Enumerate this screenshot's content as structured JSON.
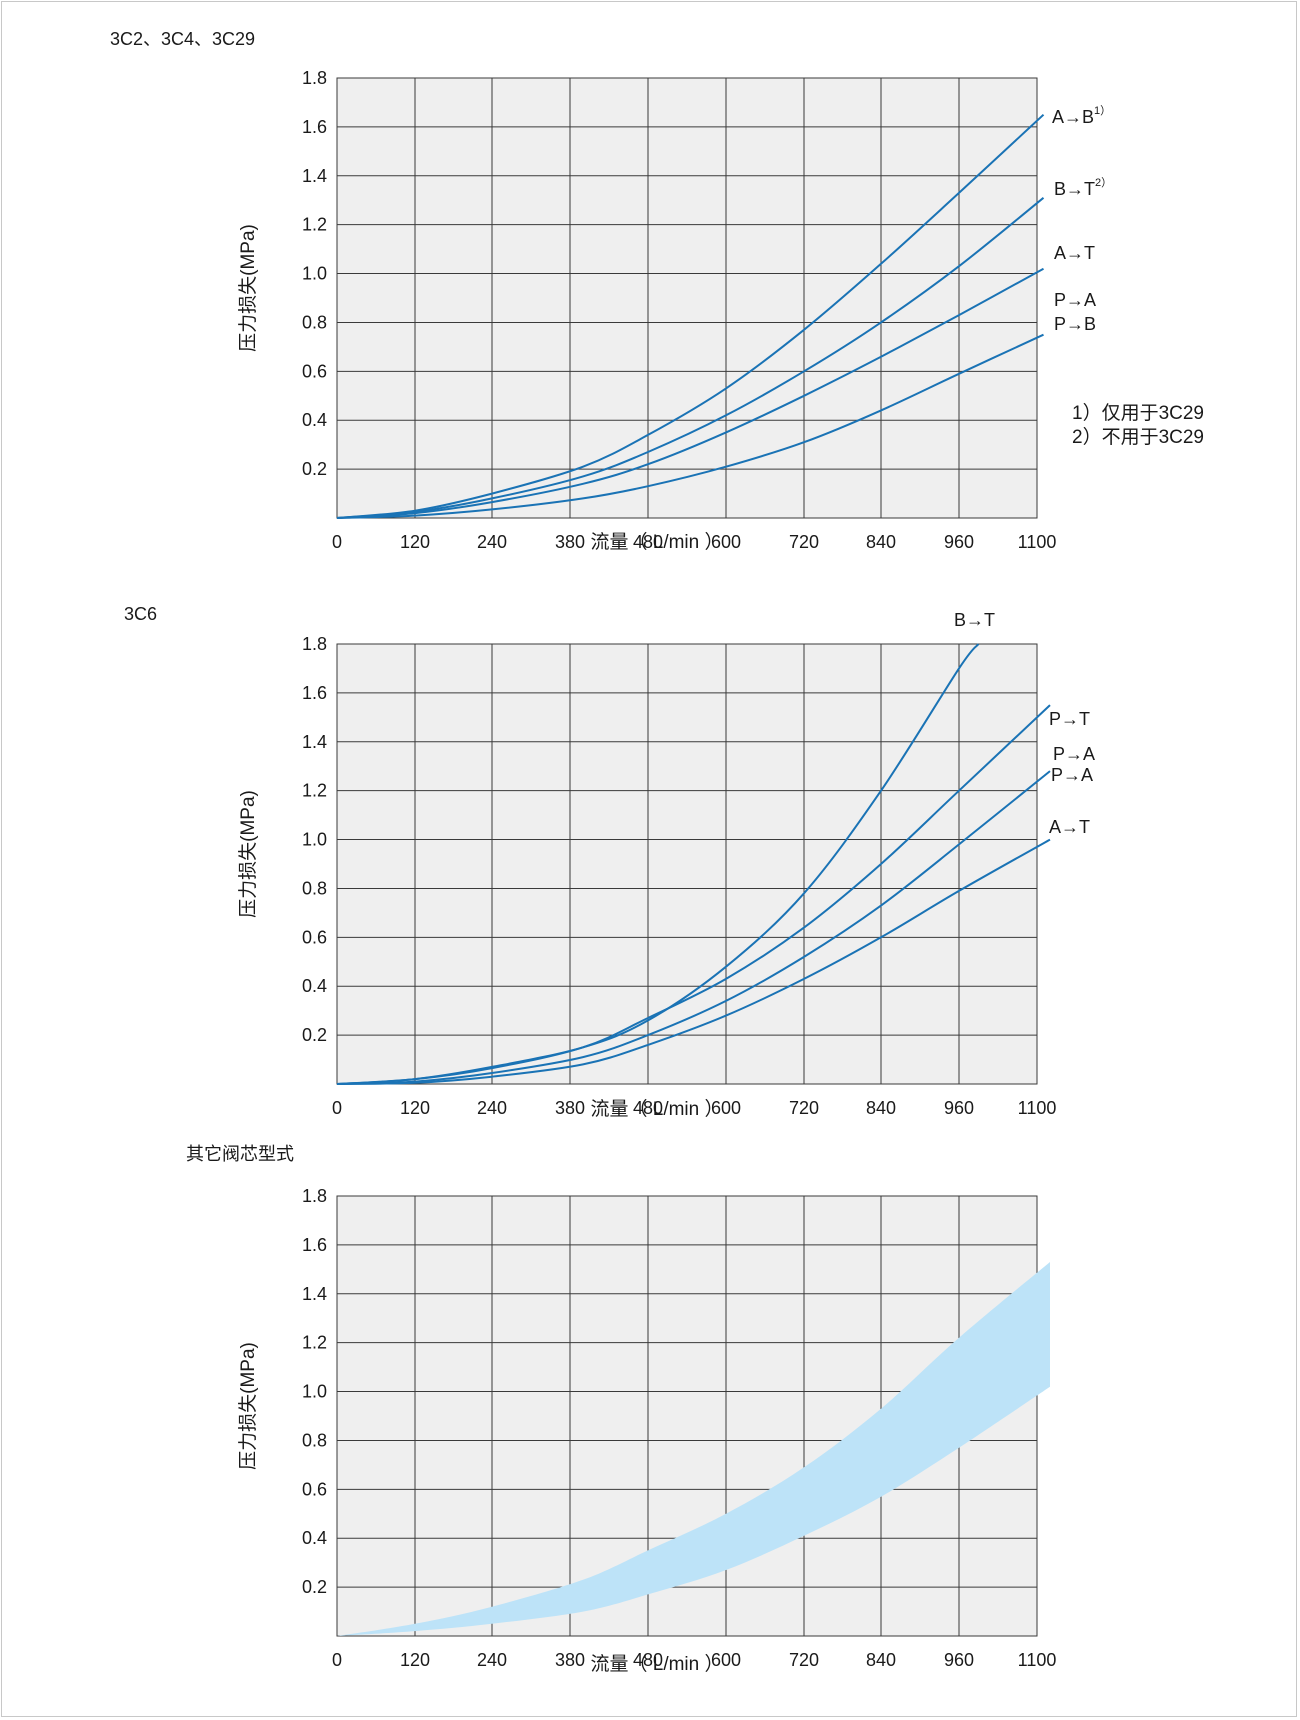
{
  "chart_data": [
    {
      "type": "line",
      "title": "3C2、3C4、3C29",
      "xlabel": "流量（ L/min ）",
      "ylabel": "压力损失(MPa)",
      "x_ticks": [
        "0",
        "120",
        "240",
        "380",
        "480",
        "600",
        "720",
        "840",
        "960",
        "1100"
      ],
      "y_ticks": [
        "0.2",
        "0.4",
        "0.6",
        "0.8",
        "1.0",
        "1.2",
        "1.4",
        "1.6",
        "1.8"
      ],
      "xlim": [
        0,
        1100
      ],
      "ylim": [
        0,
        1.8
      ],
      "grid": true,
      "line_color": "#1a73b5",
      "series": [
        {
          "name": "A→B",
          "sup": "1）",
          "x": [
            0,
            120,
            240,
            380,
            480,
            600,
            720,
            840,
            960,
            1090
          ],
          "y": [
            0,
            0.03,
            0.1,
            0.21,
            0.34,
            0.53,
            0.77,
            1.04,
            1.33,
            1.65
          ]
        },
        {
          "name": "B→T",
          "sup": "2）",
          "x": [
            0,
            120,
            240,
            380,
            480,
            600,
            720,
            840,
            960,
            1090
          ],
          "y": [
            0,
            0.025,
            0.08,
            0.17,
            0.27,
            0.42,
            0.6,
            0.8,
            1.03,
            1.31
          ]
        },
        {
          "name": "A→T",
          "sup": "",
          "x": [
            0,
            120,
            240,
            380,
            480,
            600,
            720,
            840,
            960,
            1090
          ],
          "y": [
            0,
            0.02,
            0.065,
            0.14,
            0.22,
            0.35,
            0.5,
            0.66,
            0.83,
            1.02
          ]
        },
        {
          "name": "P→A",
          "sup": "",
          "x": [
            0,
            120,
            240,
            380,
            480,
            600,
            720,
            840,
            960,
            1090
          ],
          "y": [
            0,
            0.01,
            0.035,
            0.08,
            0.13,
            0.21,
            0.31,
            0.44,
            0.59,
            0.75
          ]
        }
      ],
      "extra_labels": [
        "P→B"
      ],
      "notes": [
        "1）仅用于3C29",
        "2）不用于3C29"
      ]
    },
    {
      "type": "line",
      "title": "3C6",
      "xlabel": "流量（ L/min ）",
      "ylabel": "压力损失(MPa)",
      "x_ticks": [
        "0",
        "120",
        "240",
        "380",
        "480",
        "600",
        "720",
        "840",
        "960",
        "1100"
      ],
      "y_ticks": [
        "0.2",
        "0.4",
        "0.6",
        "0.8",
        "1.0",
        "1.2",
        "1.4",
        "1.6",
        "1.8"
      ],
      "xlim": [
        0,
        1100
      ],
      "ylim": [
        0,
        1.8
      ],
      "grid": true,
      "line_color": "#1a73b5",
      "series": [
        {
          "name": "B→T",
          "x": [
            0,
            120,
            240,
            380,
            480,
            600,
            720,
            840,
            960,
            990
          ],
          "y": [
            0,
            0.02,
            0.07,
            0.15,
            0.26,
            0.48,
            0.78,
            1.2,
            1.7,
            1.8
          ]
        },
        {
          "name": "P→T",
          "x": [
            0,
            120,
            240,
            380,
            480,
            600,
            720,
            840,
            960,
            1100
          ],
          "y": [
            0,
            0.02,
            0.065,
            0.15,
            0.27,
            0.43,
            0.64,
            0.9,
            1.2,
            1.55
          ]
        },
        {
          "name": "P→A",
          "x": [
            0,
            120,
            240,
            380,
            480,
            600,
            720,
            840,
            960,
            1100
          ],
          "y": [
            0,
            0.01,
            0.045,
            0.11,
            0.2,
            0.34,
            0.52,
            0.73,
            0.98,
            1.28
          ]
        },
        {
          "name": "A→T",
          "x": [
            0,
            120,
            240,
            380,
            480,
            600,
            720,
            840,
            960,
            1100
          ],
          "y": [
            0,
            0.005,
            0.03,
            0.08,
            0.16,
            0.28,
            0.43,
            0.6,
            0.79,
            1.0
          ]
        }
      ],
      "extra_labels": [
        "P→A"
      ]
    },
    {
      "type": "area",
      "title": "其它阀芯型式",
      "xlabel": "流量（ L/min ）",
      "ylabel": "压力损失(MPa)",
      "x_ticks": [
        "0",
        "120",
        "240",
        "380",
        "480",
        "600",
        "720",
        "840",
        "960",
        "1100"
      ],
      "y_ticks": [
        "0.2",
        "0.4",
        "0.6",
        "0.8",
        "1.0",
        "1.2",
        "1.4",
        "1.6",
        "1.8"
      ],
      "xlim": [
        0,
        1100
      ],
      "ylim": [
        0,
        1.8
      ],
      "grid": true,
      "band_color": "#bde3f8",
      "series": [
        {
          "name": "",
          "x": [
            0,
            120,
            240,
            380,
            480,
            600,
            720,
            840,
            960,
            1100
          ],
          "y": [
            0,
            0.05,
            0.12,
            0.23,
            0.35,
            0.5,
            0.69,
            0.93,
            1.22,
            1.53
          ]
        },
        {
          "name": "",
          "x": [
            0,
            120,
            240,
            380,
            480,
            600,
            720,
            840,
            960,
            1100
          ],
          "y": [
            0,
            0.02,
            0.05,
            0.1,
            0.17,
            0.27,
            0.41,
            0.57,
            0.77,
            1.02
          ]
        }
      ]
    }
  ]
}
